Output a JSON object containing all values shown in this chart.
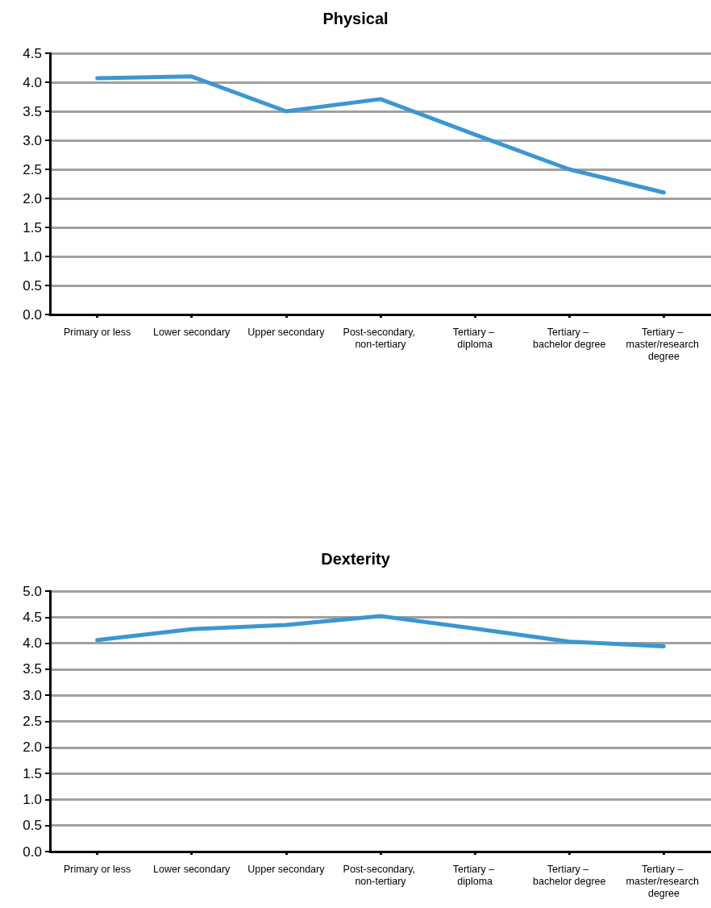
{
  "chart_data": [
    {
      "type": "line",
      "title": "Physical",
      "categories": [
        "Primary or less",
        "Lower secondary",
        "Upper secondary",
        "Post-secondary, non-tertiary",
        "Tertiary – diploma",
        "Tertiary – bachelor degree",
        "Tertiary – master/research degree"
      ],
      "series": [
        {
          "color": "#3a97d1",
          "values": [
            4.07,
            4.1,
            3.5,
            3.71,
            3.1,
            2.5,
            2.1
          ]
        }
      ],
      "ylim": [
        0,
        4.5
      ],
      "yticks": [
        {
          "value": 0,
          "label": "0.0"
        },
        {
          "value": 0.5,
          "label": "0.5"
        },
        {
          "value": 1,
          "label": "1.0"
        },
        {
          "value": 1.5,
          "label": "1.5"
        },
        {
          "value": 2,
          "label": "2.0"
        },
        {
          "value": 2.5,
          "label": "2.5"
        },
        {
          "value": 3,
          "label": "3.0"
        },
        {
          "value": 3.5,
          "label": "3.5"
        },
        {
          "value": 4,
          "label": "4.0"
        },
        {
          "value": 4.5,
          "label": "4.5"
        }
      ],
      "grid": "y",
      "marker": "none",
      "line_style": "solid"
    },
    {
      "type": "line",
      "title": "Dexterity",
      "categories": [
        "Primary or less",
        "Lower secondary",
        "Upper secondary",
        "Post-secondary, non-tertiary",
        "Tertiary – diploma",
        "Tertiary – bachelor degree",
        "Tertiary – master/research degree"
      ],
      "series": [
        {
          "color": "#3a97d1",
          "values": [
            4.06,
            4.27,
            4.35,
            4.52,
            4.28,
            4.03,
            3.94
          ]
        }
      ],
      "ylim": [
        0,
        5
      ],
      "yticks": [
        {
          "value": 0,
          "label": "0.0"
        },
        {
          "value": 0.5,
          "label": "0.5"
        },
        {
          "value": 1,
          "label": "1.0"
        },
        {
          "value": 1.5,
          "label": "1.5"
        },
        {
          "value": 2,
          "label": "2.0"
        },
        {
          "value": 2.5,
          "label": "2.5"
        },
        {
          "value": 3,
          "label": "3.0"
        },
        {
          "value": 3.5,
          "label": "3.5"
        },
        {
          "value": 4,
          "label": "4.0"
        },
        {
          "value": 4.5,
          "label": "4.5"
        },
        {
          "value": 5,
          "label": "5.0"
        }
      ],
      "grid": "y",
      "marker": "none",
      "line_style": "solid"
    }
  ]
}
